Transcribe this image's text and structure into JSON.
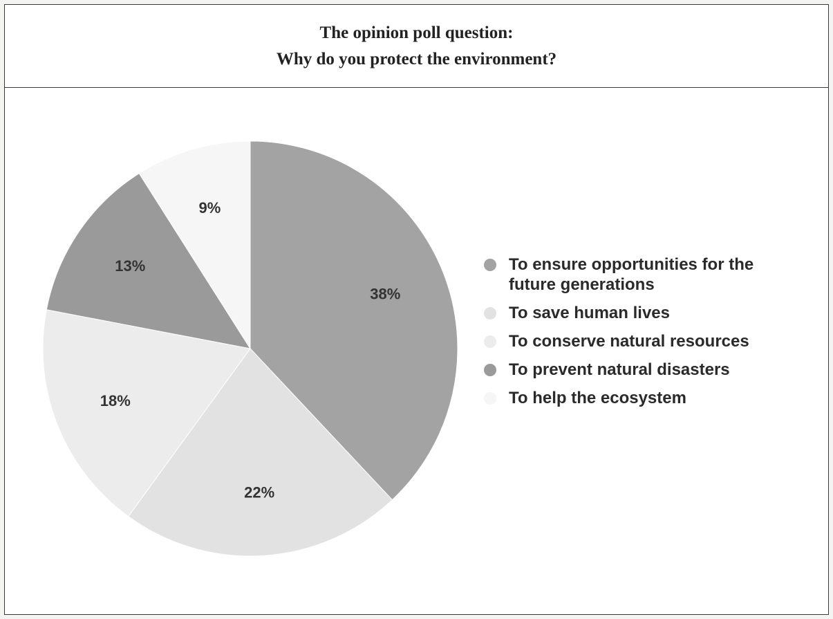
{
  "title": {
    "line1": "The opinion poll question:",
    "line2": "Why do you protect the environment?"
  },
  "chart_data": {
    "type": "pie",
    "categories": [
      "To ensure opportunities for the future generations",
      "To save human lives",
      "To conserve natural resources",
      "To prevent natural disasters",
      "To help the ecosystem"
    ],
    "values": [
      38,
      22,
      18,
      13,
      9
    ],
    "value_labels": [
      "38%",
      "22%",
      "18%",
      "13%",
      "9%"
    ],
    "colors": [
      "#a3a3a3",
      "#e2e2e2",
      "#ececec",
      "#9a9a9a",
      "#f6f6f6"
    ],
    "start_angle_deg": 0,
    "direction": "clockwise",
    "legend_position": "right"
  },
  "legend": {
    "items": [
      {
        "label": "To ensure opportunities for the future generations"
      },
      {
        "label": "To save human lives"
      },
      {
        "label": "To conserve natural resources"
      },
      {
        "label": "To prevent natural disasters"
      },
      {
        "label": "To help the ecosystem"
      }
    ]
  }
}
